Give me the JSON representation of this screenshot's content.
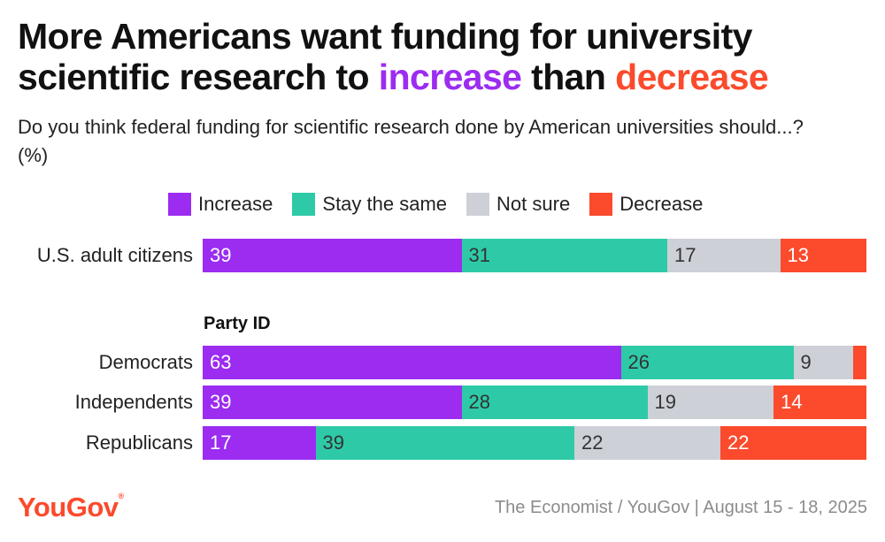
{
  "header": {
    "title_part1": "More Americans want funding for university scientific research to ",
    "title_increase": "increase",
    "title_part2": " than ",
    "title_decrease": "decrease",
    "subtitle": "Do you think federal funding for scientific research done by American universities should...? (%)"
  },
  "footer": {
    "brand": "YouGov",
    "brand_mark": "®",
    "source": "The Economist / YouGov | August 15 - 18, 2025"
  },
  "colors": {
    "increase": "#9b2cf0",
    "stay": "#2ecaa8",
    "not_sure": "#cdd0d6",
    "decrease": "#fb4a2c"
  },
  "chart_data": {
    "type": "bar",
    "orientation": "horizontal-stacked-100",
    "title": "More Americans want funding for university scientific research to increase than decrease",
    "subtitle": "Do you think federal funding for scientific research done by American universities should...? (%)",
    "legend": [
      "Increase",
      "Stay the same",
      "Not sure",
      "Decrease"
    ],
    "legend_placement": "top",
    "section_label": "Party ID",
    "categories": [
      "U.S. adult citizens",
      "Democrats",
      "Independents",
      "Republicans"
    ],
    "series": [
      {
        "name": "Increase",
        "values": [
          39,
          63,
          39,
          17
        ]
      },
      {
        "name": "Stay the same",
        "values": [
          31,
          26,
          28,
          39
        ]
      },
      {
        "name": "Not sure",
        "values": [
          17,
          9,
          19,
          22
        ]
      },
      {
        "name": "Decrease",
        "values": [
          13,
          2,
          14,
          22
        ]
      }
    ],
    "data_labels": [
      [
        "39",
        "31",
        "17",
        "13"
      ],
      [
        "63",
        "26",
        "9",
        ""
      ],
      [
        "39",
        "28",
        "19",
        "14"
      ],
      [
        "17",
        "39",
        "22",
        "22"
      ]
    ]
  }
}
